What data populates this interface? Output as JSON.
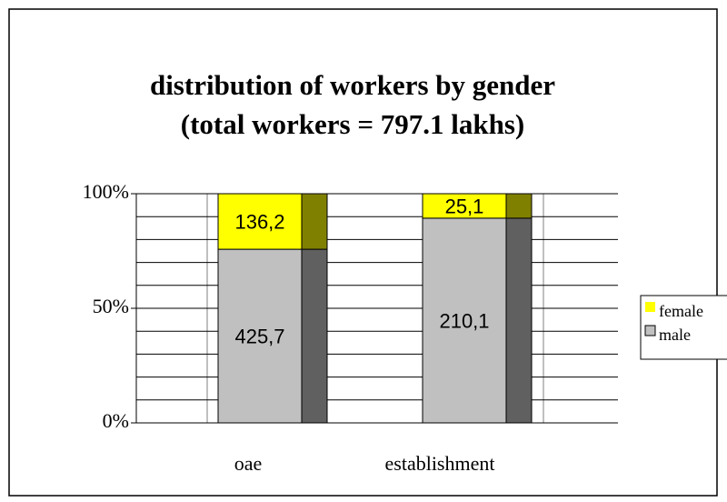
{
  "chart_data": {
    "type": "stacked_bar_100",
    "title": "distribution of workers by gender",
    "subtitle": "(total workers = 797.1 lakhs)",
    "categories": [
      "oae",
      "establishment"
    ],
    "series": [
      {
        "name": "male",
        "color": "#c0c0c0",
        "side_color": "#606060",
        "values": [
          425.7,
          210.1
        ],
        "value_labels": [
          "425,7",
          "210,1"
        ]
      },
      {
        "name": "female",
        "color": "#ffff00",
        "side_color": "#808000",
        "values": [
          136.2,
          25.1
        ],
        "value_labels": [
          "136,2",
          "25,1"
        ]
      }
    ],
    "ylim": [
      0,
      100
    ],
    "yticks": [
      {
        "value": 0,
        "label": "0%"
      },
      {
        "value": 50,
        "label": "50%"
      },
      {
        "value": 100,
        "label": "100%"
      }
    ],
    "minor_yticks": [
      10,
      20,
      30,
      40,
      60,
      70,
      80,
      90
    ],
    "grid": true,
    "legend": "right"
  }
}
